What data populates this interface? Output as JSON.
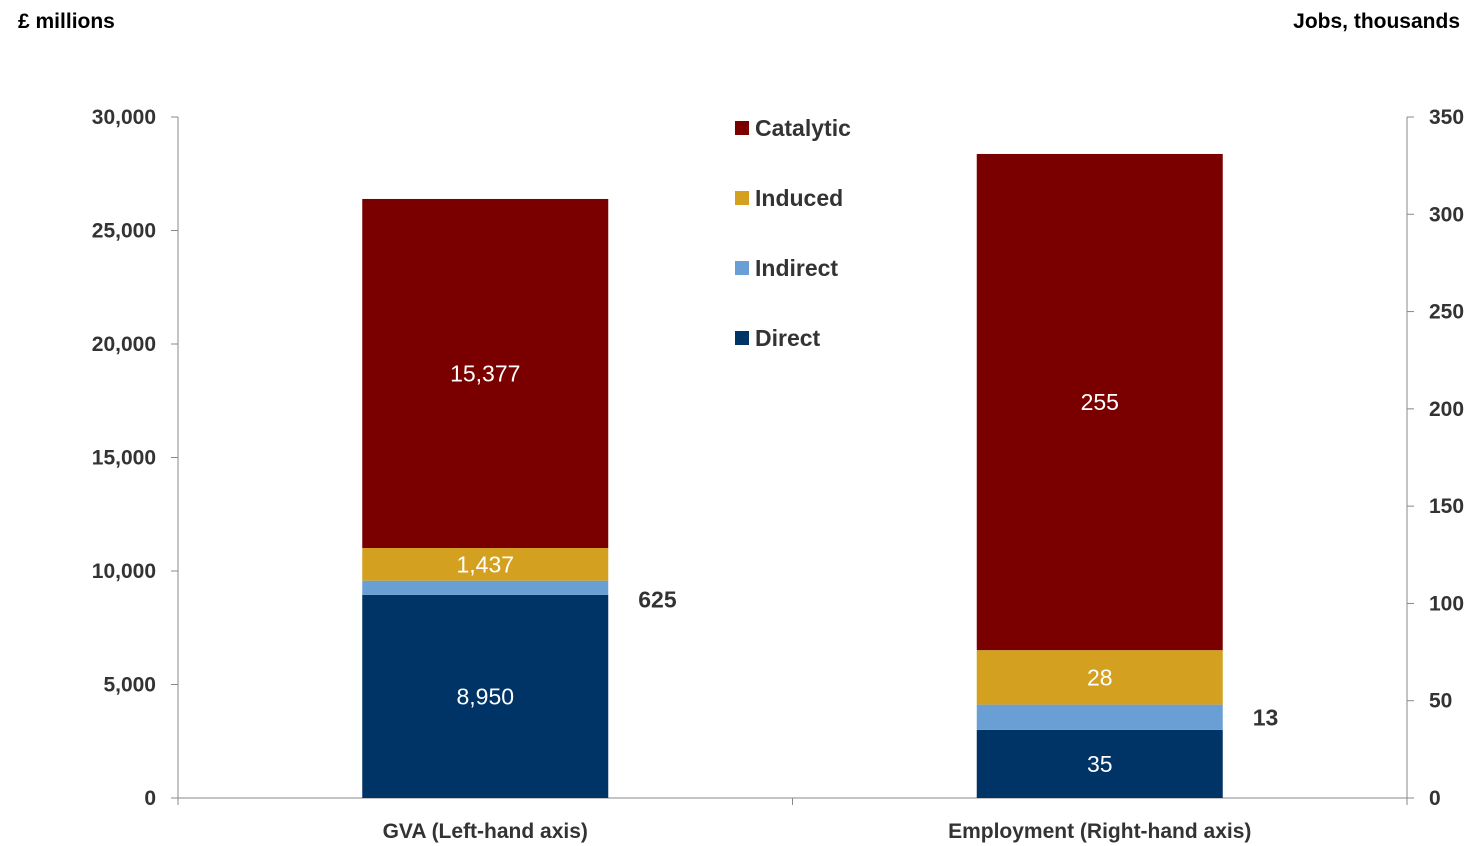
{
  "chart_data": {
    "type": "bar",
    "stacked": true,
    "dual_axis": true,
    "left_axis_title": "£ millions",
    "right_axis_title": "Jobs, thousands",
    "left_ylim": [
      0,
      30000
    ],
    "right_ylim": [
      0,
      350
    ],
    "left_ticks": [
      "0",
      "5,000",
      "10,000",
      "15,000",
      "20,000",
      "25,000",
      "30,000"
    ],
    "right_ticks": [
      "0",
      "50",
      "100",
      "150",
      "200",
      "250",
      "300",
      "350"
    ],
    "categories": [
      "GVA (Left-hand axis)",
      "Employment (Right-hand axis)"
    ],
    "category_axes": [
      "left",
      "right"
    ],
    "series": [
      {
        "name": "Direct",
        "color": "#003366",
        "values": [
          8950,
          35
        ],
        "labels": [
          "8,950",
          "35"
        ]
      },
      {
        "name": "Indirect",
        "color": "#6a9fd6",
        "values": [
          625,
          13
        ],
        "labels": [
          "625",
          "13"
        ]
      },
      {
        "name": "Induced",
        "color": "#d4a020",
        "values": [
          1437,
          28
        ],
        "labels": [
          "1,437",
          "28"
        ]
      },
      {
        "name": "Catalytic",
        "color": "#7a0000",
        "values": [
          15377,
          255
        ],
        "labels": [
          "15,377",
          "255"
        ]
      }
    ],
    "legend": {
      "position": "top-center",
      "order": [
        "Catalytic",
        "Induced",
        "Indirect",
        "Direct"
      ]
    },
    "grid": false
  }
}
